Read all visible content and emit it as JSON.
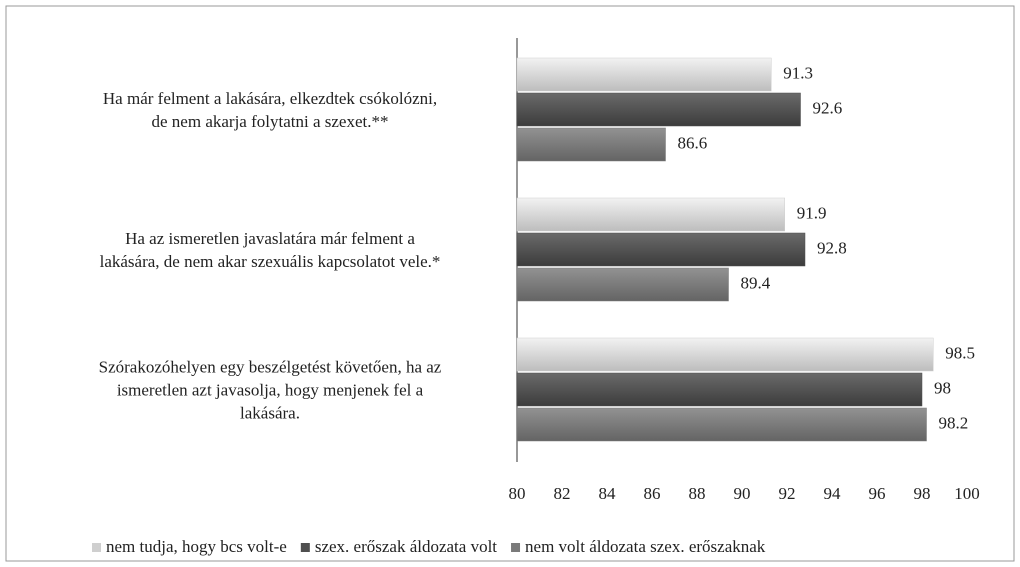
{
  "chart_data": {
    "type": "bar",
    "orientation": "horizontal",
    "categories": [
      "Ha már felment a lakására, elkezdtek csókolózni,\nde nem akarja folytatni a szexet.**",
      "Ha az ismeretlen javaslatára már felment a\nlakására, de nem akar szexuális kapcsolatot vele.*",
      "Szórakozóhelyen egy beszélgetést követően, ha az\nismeretlen azt javasolja, hogy menjenek fel a\nlakására."
    ],
    "series": [
      {
        "name": "nem tudja, hogy bcs volt-e",
        "color": "#cfcfcf",
        "values": [
          91.3,
          91.9,
          98.5
        ]
      },
      {
        "name": "szex. erőszak áldozata volt",
        "color": "#4f4f4f",
        "values": [
          92.6,
          92.8,
          98
        ]
      },
      {
        "name": "nem volt áldozata szex. erőszaknak",
        "color": "#7a7a7a",
        "values": [
          86.6,
          89.4,
          98.2
        ]
      }
    ],
    "xlim": [
      80,
      100
    ],
    "xticks": [
      80,
      82,
      84,
      86,
      88,
      90,
      92,
      94,
      96,
      98,
      100
    ],
    "legend": "bottom"
  }
}
